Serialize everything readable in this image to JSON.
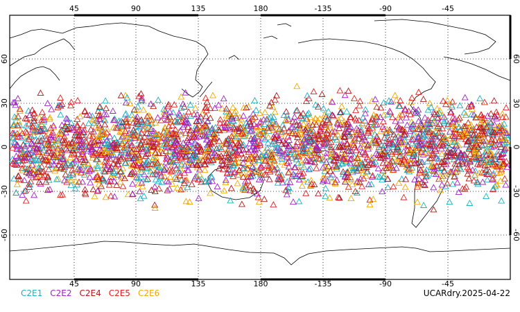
{
  "map": {
    "projection": "cylindrical equidistant",
    "lon_range": [
      0,
      360
    ],
    "lat_range": [
      -90,
      90
    ],
    "lon_tick_labels": [
      "45",
      "90",
      "135",
      "180",
      "-135",
      "-90",
      "-45"
    ],
    "lat_tick_labels": [
      "60",
      "30",
      "0",
      "-30",
      "-60"
    ],
    "gridlines": "dotted",
    "marker": "triangle-outline"
  },
  "legend": {
    "items": [
      {
        "label": "C2E1",
        "color": "#1ab0c0"
      },
      {
        "label": "C2E2",
        "color": "#a020c8"
      },
      {
        "label": "C2E4",
        "color": "#b01818"
      },
      {
        "label": "C2E5",
        "color": "#e02020"
      },
      {
        "label": "C2E6",
        "color": "#f0a800"
      }
    ]
  },
  "stamp": {
    "text": "UCARdry.2025-04-22"
  },
  "observations": {
    "lat_band": [
      -45,
      45
    ],
    "count_shown": 3000
  },
  "landmass_icons": [
    "north-america-icon",
    "eurasia-icon",
    "australia-icon",
    "antarctica-icon",
    "south-america-icon"
  ]
}
